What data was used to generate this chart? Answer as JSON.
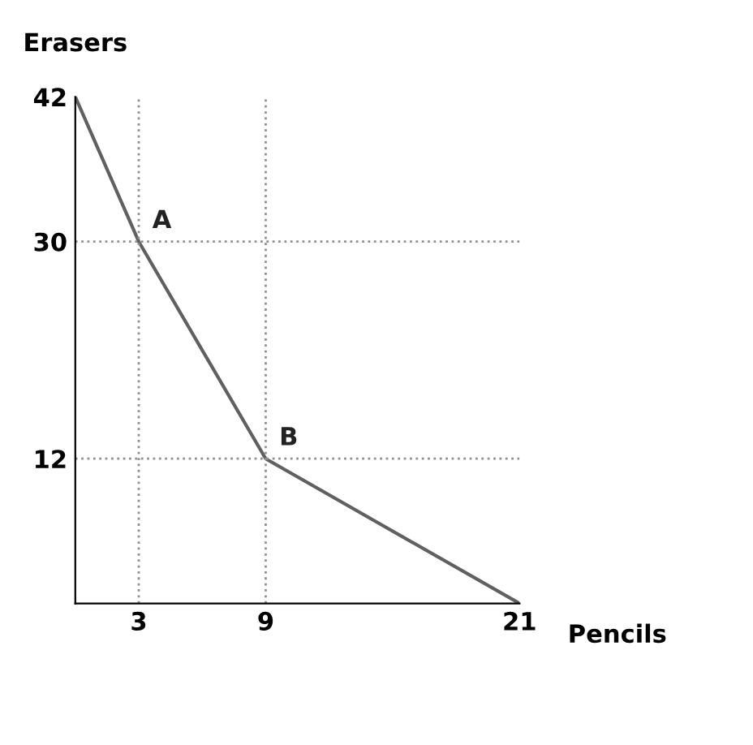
{
  "chart_data": {
    "type": "line",
    "xlabel": "Pencils",
    "ylabel": "Erasers",
    "x": [
      0,
      3,
      9,
      21
    ],
    "series": [
      {
        "color": "#606060",
        "values": [
          42,
          30,
          12,
          0
        ]
      }
    ],
    "xlim": [
      0,
      21
    ],
    "ylim": [
      0,
      42
    ],
    "xticks": [
      3,
      9,
      21
    ],
    "yticks": [
      12,
      30,
      42
    ],
    "ref_lines": [
      {
        "axis": "x",
        "value": 3,
        "color": "#909090",
        "line_style": "dotted"
      },
      {
        "axis": "x",
        "value": 9,
        "color": "#909090",
        "line_style": "dotted"
      },
      {
        "axis": "y",
        "value": 30,
        "color": "#909090",
        "line_style": "dotted"
      },
      {
        "axis": "y",
        "value": 12,
        "color": "#909090",
        "line_style": "dotted"
      }
    ],
    "annotations": [
      {
        "text": "A",
        "x": 3,
        "y": 30
      },
      {
        "text": "B",
        "x": 9,
        "y": 12
      }
    ],
    "grid": false,
    "legend": false,
    "marker": "none",
    "line_style": "solid"
  }
}
